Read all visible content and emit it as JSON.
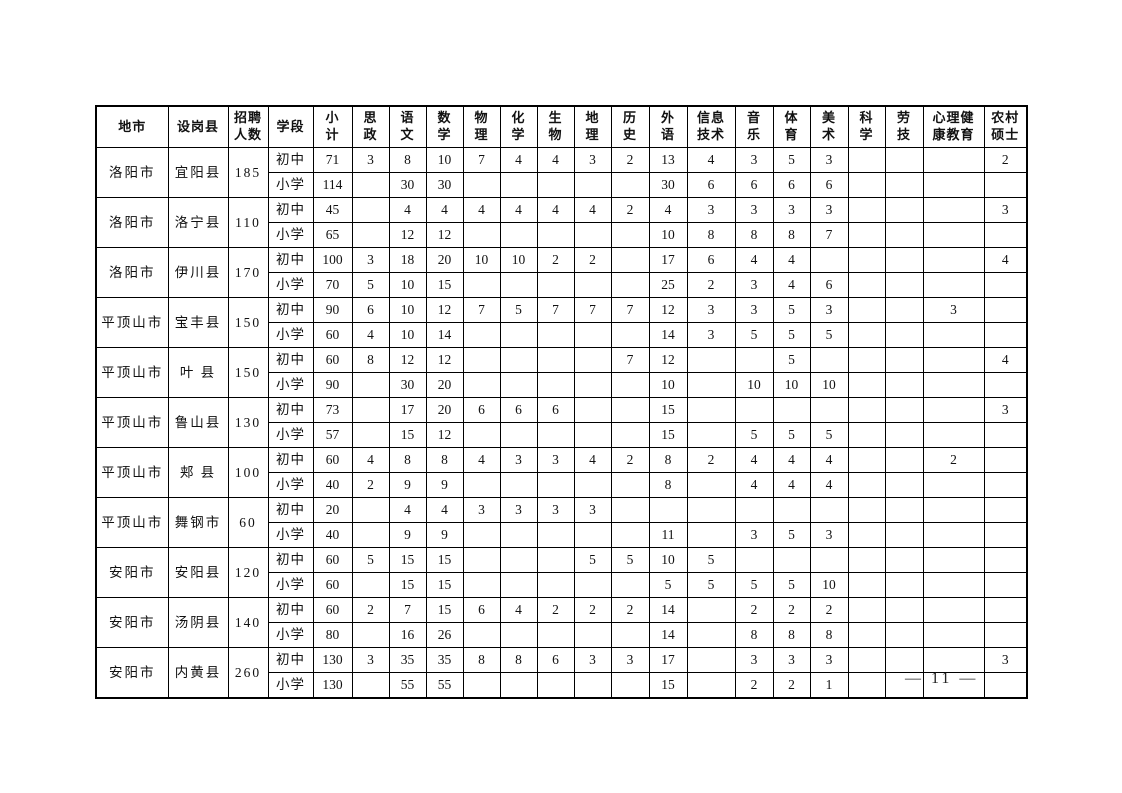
{
  "page": {
    "number_label": "— 11 —"
  },
  "table": {
    "headers": [
      "地市",
      "设岗县",
      "招聘\n人数",
      "学段",
      "小\n计",
      "思\n政",
      "语\n文",
      "数\n学",
      "物\n理",
      "化\n学",
      "生\n物",
      "地\n理",
      "历\n史",
      "外\n语",
      "信息\n技术",
      "音\n乐",
      "体\n育",
      "美\n术",
      "科\n学",
      "劳\n技",
      "心理健\n康教育",
      "农村\n硕士"
    ],
    "rows": [
      {
        "city": "洛阳市",
        "county": "宜阳县",
        "total": "185",
        "levels": [
          {
            "level": "初中",
            "values": [
              "71",
              "3",
              "8",
              "10",
              "7",
              "4",
              "4",
              "3",
              "2",
              "13",
              "4",
              "3",
              "5",
              "3",
              "",
              "",
              "",
              "2"
            ]
          },
          {
            "level": "小学",
            "values": [
              "114",
              "",
              "30",
              "30",
              "",
              "",
              "",
              "",
              "",
              "30",
              "6",
              "6",
              "6",
              "6",
              "",
              "",
              "",
              ""
            ]
          }
        ]
      },
      {
        "city": "洛阳市",
        "county": "洛宁县",
        "total": "110",
        "levels": [
          {
            "level": "初中",
            "values": [
              "45",
              "",
              "4",
              "4",
              "4",
              "4",
              "4",
              "4",
              "2",
              "4",
              "3",
              "3",
              "3",
              "3",
              "",
              "",
              "",
              "3"
            ]
          },
          {
            "level": "小学",
            "values": [
              "65",
              "",
              "12",
              "12",
              "",
              "",
              "",
              "",
              "",
              "10",
              "8",
              "8",
              "8",
              "7",
              "",
              "",
              "",
              ""
            ]
          }
        ]
      },
      {
        "city": "洛阳市",
        "county": "伊川县",
        "total": "170",
        "levels": [
          {
            "level": "初中",
            "values": [
              "100",
              "3",
              "18",
              "20",
              "10",
              "10",
              "2",
              "2",
              "",
              "17",
              "6",
              "4",
              "4",
              "",
              "",
              "",
              "",
              "4"
            ]
          },
          {
            "level": "小学",
            "values": [
              "70",
              "5",
              "10",
              "15",
              "",
              "",
              "",
              "",
              "",
              "25",
              "2",
              "3",
              "4",
              "6",
              "",
              "",
              "",
              ""
            ]
          }
        ]
      },
      {
        "city": "平顶山市",
        "county": "宝丰县",
        "total": "150",
        "levels": [
          {
            "level": "初中",
            "values": [
              "90",
              "6",
              "10",
              "12",
              "7",
              "5",
              "7",
              "7",
              "7",
              "12",
              "3",
              "3",
              "5",
              "3",
              "",
              "",
              "3",
              ""
            ]
          },
          {
            "level": "小学",
            "values": [
              "60",
              "4",
              "10",
              "14",
              "",
              "",
              "",
              "",
              "",
              "14",
              "3",
              "5",
              "5",
              "5",
              "",
              "",
              "",
              ""
            ]
          }
        ]
      },
      {
        "city": "平顶山市",
        "county": "叶 县",
        "total": "150",
        "levels": [
          {
            "level": "初中",
            "values": [
              "60",
              "8",
              "12",
              "12",
              "",
              "",
              "",
              "",
              "7",
              "12",
              "",
              "",
              "5",
              "",
              "",
              "",
              "",
              "4"
            ]
          },
          {
            "level": "小学",
            "values": [
              "90",
              "",
              "30",
              "20",
              "",
              "",
              "",
              "",
              "",
              "10",
              "",
              "10",
              "10",
              "10",
              "",
              "",
              "",
              ""
            ]
          }
        ]
      },
      {
        "city": "平顶山市",
        "county": "鲁山县",
        "total": "130",
        "levels": [
          {
            "level": "初中",
            "values": [
              "73",
              "",
              "17",
              "20",
              "6",
              "6",
              "6",
              "",
              "",
              "15",
              "",
              "",
              "",
              "",
              "",
              "",
              "",
              "3"
            ]
          },
          {
            "level": "小学",
            "values": [
              "57",
              "",
              "15",
              "12",
              "",
              "",
              "",
              "",
              "",
              "15",
              "",
              "5",
              "5",
              "5",
              "",
              "",
              "",
              ""
            ]
          }
        ]
      },
      {
        "city": "平顶山市",
        "county": "郏 县",
        "total": "100",
        "levels": [
          {
            "level": "初中",
            "values": [
              "60",
              "4",
              "8",
              "8",
              "4",
              "3",
              "3",
              "4",
              "2",
              "8",
              "2",
              "4",
              "4",
              "4",
              "",
              "",
              "2",
              ""
            ]
          },
          {
            "level": "小学",
            "values": [
              "40",
              "2",
              "9",
              "9",
              "",
              "",
              "",
              "",
              "",
              "8",
              "",
              "4",
              "4",
              "4",
              "",
              "",
              "",
              ""
            ]
          }
        ]
      },
      {
        "city": "平顶山市",
        "county": "舞钢市",
        "total": "60",
        "levels": [
          {
            "level": "初中",
            "values": [
              "20",
              "",
              "4",
              "4",
              "3",
              "3",
              "3",
              "3",
              "",
              "",
              "",
              "",
              "",
              "",
              "",
              "",
              "",
              ""
            ]
          },
          {
            "level": "小学",
            "values": [
              "40",
              "",
              "9",
              "9",
              "",
              "",
              "",
              "",
              "",
              "11",
              "",
              "3",
              "5",
              "3",
              "",
              "",
              "",
              ""
            ]
          }
        ]
      },
      {
        "city": "安阳市",
        "county": "安阳县",
        "total": "120",
        "levels": [
          {
            "level": "初中",
            "values": [
              "60",
              "5",
              "15",
              "15",
              "",
              "",
              "",
              "5",
              "5",
              "10",
              "5",
              "",
              "",
              "",
              "",
              "",
              "",
              ""
            ]
          },
          {
            "level": "小学",
            "values": [
              "60",
              "",
              "15",
              "15",
              "",
              "",
              "",
              "",
              "",
              "5",
              "5",
              "5",
              "5",
              "10",
              "",
              "",
              "",
              ""
            ]
          }
        ]
      },
      {
        "city": "安阳市",
        "county": "汤阴县",
        "total": "140",
        "levels": [
          {
            "level": "初中",
            "values": [
              "60",
              "2",
              "7",
              "15",
              "6",
              "4",
              "2",
              "2",
              "2",
              "14",
              "",
              "2",
              "2",
              "2",
              "",
              "",
              "",
              ""
            ]
          },
          {
            "level": "小学",
            "values": [
              "80",
              "",
              "16",
              "26",
              "",
              "",
              "",
              "",
              "",
              "14",
              "",
              "8",
              "8",
              "8",
              "",
              "",
              "",
              ""
            ]
          }
        ]
      },
      {
        "city": "安阳市",
        "county": "内黄县",
        "total": "260",
        "levels": [
          {
            "level": "初中",
            "values": [
              "130",
              "3",
              "35",
              "35",
              "8",
              "8",
              "6",
              "3",
              "3",
              "17",
              "",
              "3",
              "3",
              "3",
              "",
              "",
              "",
              "3"
            ]
          },
          {
            "level": "小学",
            "values": [
              "130",
              "",
              "55",
              "55",
              "",
              "",
              "",
              "",
              "",
              "15",
              "",
              "2",
              "2",
              "1",
              "",
              "",
              "",
              ""
            ]
          }
        ]
      }
    ]
  }
}
